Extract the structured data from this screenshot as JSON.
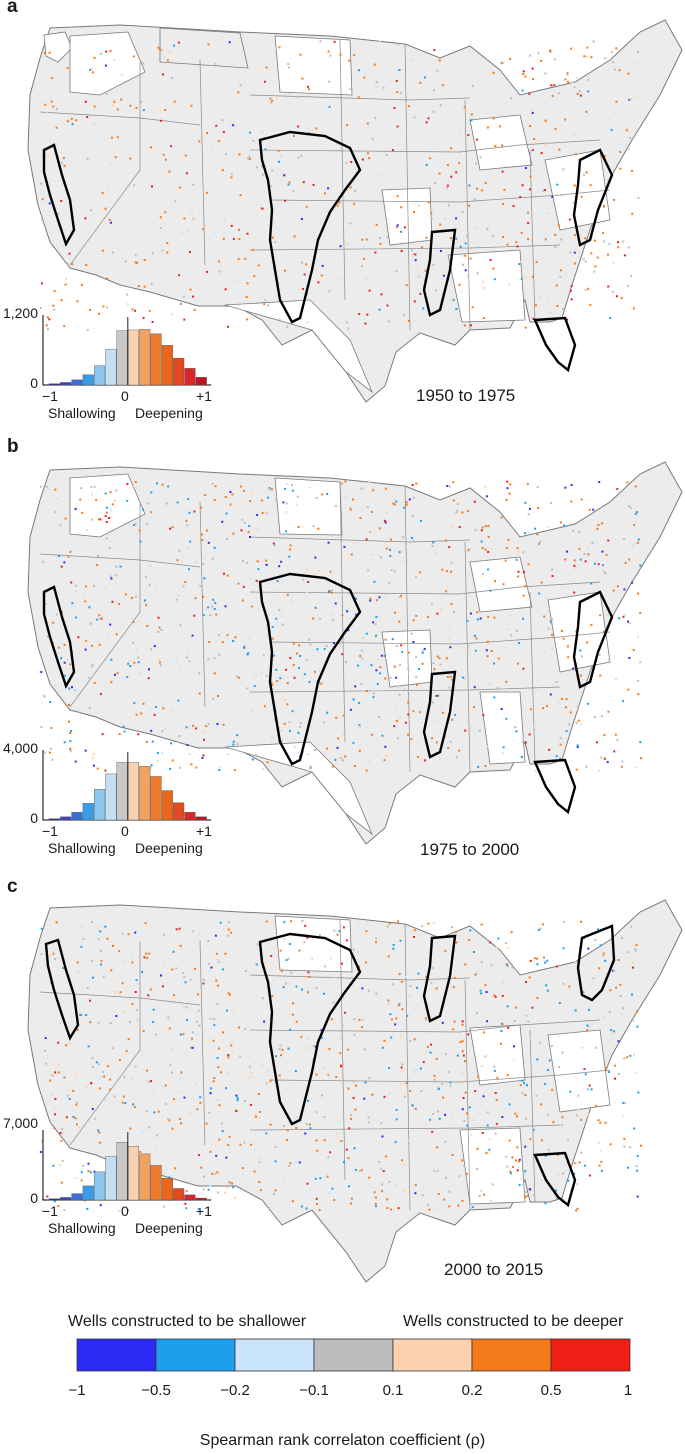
{
  "panels": [
    {
      "label": "a",
      "period": "1950 to 1975",
      "hist": {
        "ymax": "1,200",
        "ymin": "0",
        "x_left": "−1",
        "x_mid": "0",
        "x_right": "+1",
        "left_label": "Shallowing",
        "right_label": "Deepening"
      }
    },
    {
      "label": "b",
      "period": "1975 to 2000",
      "hist": {
        "ymax": "4,000",
        "ymin": "0",
        "x_left": "−1",
        "x_mid": "0",
        "x_right": "+1",
        "left_label": "Shallowing",
        "right_label": "Deepening"
      }
    },
    {
      "label": "c",
      "period": "2000 to 2015",
      "hist": {
        "ymax": "7,000",
        "ymin": "0",
        "x_left": "−1",
        "x_mid": "0",
        "x_right": "+1",
        "left_label": "Shallowing",
        "right_label": "Deepening"
      }
    }
  ],
  "legend": {
    "left_caption": "Wells constructed to be shallower",
    "right_caption": "Wells constructed to be deeper",
    "ticks": [
      "−1",
      "−0.5",
      "−0.2",
      "−0.1",
      "0.1",
      "0.2",
      "0.5",
      "1"
    ],
    "colors": [
      "#2b2bf5",
      "#1e9fee",
      "#c9e4fb",
      "#bdbdbd",
      "#fcd2b0",
      "#f47a1c",
      "#f01e14"
    ],
    "title": "Spearman rank correlaton coefficient (ρ)"
  },
  "hist_colors": [
    "#2f2f8a",
    "#3a46c4",
    "#3a6fd8",
    "#3a9be8",
    "#8dc6f0",
    "#c5def2",
    "#c8c8c8",
    "#f7d1b2",
    "#f0a263",
    "#ec7a2a",
    "#e9661d",
    "#e24a1f",
    "#d8262b",
    "#b9162a"
  ],
  "hist_values": {
    "a": [
      0.02,
      0.04,
      0.08,
      0.16,
      0.3,
      0.56,
      0.85,
      0.86,
      0.87,
      0.8,
      0.62,
      0.42,
      0.26,
      0.12
    ],
    "b": [
      0.02,
      0.05,
      0.12,
      0.26,
      0.48,
      0.72,
      0.9,
      0.9,
      0.84,
      0.68,
      0.46,
      0.27,
      0.12,
      0.05
    ],
    "c": [
      0.02,
      0.04,
      0.1,
      0.22,
      0.44,
      0.68,
      0.9,
      0.84,
      0.72,
      0.54,
      0.34,
      0.18,
      0.08,
      0.03
    ]
  }
}
